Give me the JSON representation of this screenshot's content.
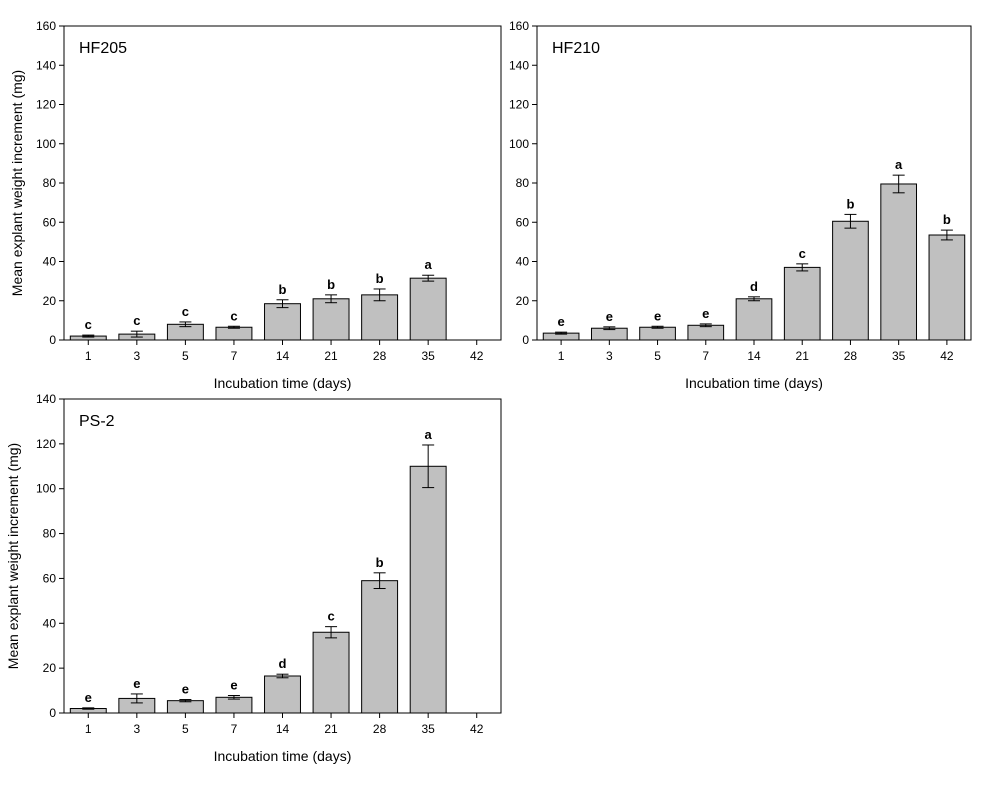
{
  "figure": {
    "bar_fill": "#c0c0c0",
    "bar_stroke": "#000000"
  },
  "chart_data": [
    {
      "type": "bar",
      "panel_label": "HF205",
      "xlabel": "Incubation time (days)",
      "ylabel": "Mean explant weight increment (mg)",
      "ylim": [
        0,
        160
      ],
      "yticks": [
        0,
        20,
        40,
        60,
        80,
        100,
        120,
        140,
        160
      ],
      "categories": [
        "1",
        "3",
        "5",
        "7",
        "14",
        "21",
        "28",
        "35",
        "42"
      ],
      "values": [
        2,
        3,
        8,
        6.5,
        18.5,
        21,
        23,
        31.5,
        null
      ],
      "errors": [
        0.5,
        1.5,
        1.2,
        0.5,
        2,
        2,
        3,
        1.5,
        null
      ],
      "letters": [
        "c",
        "c",
        "c",
        "c",
        "b",
        "b",
        "b",
        "a",
        ""
      ]
    },
    {
      "type": "bar",
      "panel_label": "HF210",
      "xlabel": "Incubation time (days)",
      "ylabel": "",
      "ylim": [
        0,
        160
      ],
      "yticks": [
        0,
        20,
        40,
        60,
        80,
        100,
        120,
        140,
        160
      ],
      "categories": [
        "1",
        "3",
        "5",
        "7",
        "14",
        "21",
        "28",
        "35",
        "42"
      ],
      "values": [
        3.5,
        6,
        6.5,
        7.5,
        21,
        37,
        60.5,
        79.5,
        53.5
      ],
      "errors": [
        0.5,
        0.7,
        0.5,
        0.7,
        1,
        1.8,
        3.5,
        4.5,
        2.5
      ],
      "letters": [
        "e",
        "e",
        "e",
        "e",
        "d",
        "c",
        "b",
        "a",
        "b"
      ]
    },
    {
      "type": "bar",
      "panel_label": "PS-2",
      "xlabel": "Incubation time (days)",
      "ylabel": "Mean explant weight increment (mg)",
      "ylim": [
        0,
        140
      ],
      "yticks": [
        0,
        20,
        40,
        60,
        80,
        100,
        120,
        140
      ],
      "categories": [
        "1",
        "3",
        "5",
        "7",
        "14",
        "21",
        "28",
        "35",
        "42"
      ],
      "values": [
        2,
        6.5,
        5.5,
        7,
        16.5,
        36,
        59,
        110,
        null
      ],
      "errors": [
        0.3,
        2,
        0.5,
        0.8,
        0.8,
        2.5,
        3.5,
        9.5,
        null
      ],
      "letters": [
        "e",
        "e",
        "e",
        "e",
        "d",
        "c",
        "b",
        "a",
        ""
      ]
    }
  ]
}
